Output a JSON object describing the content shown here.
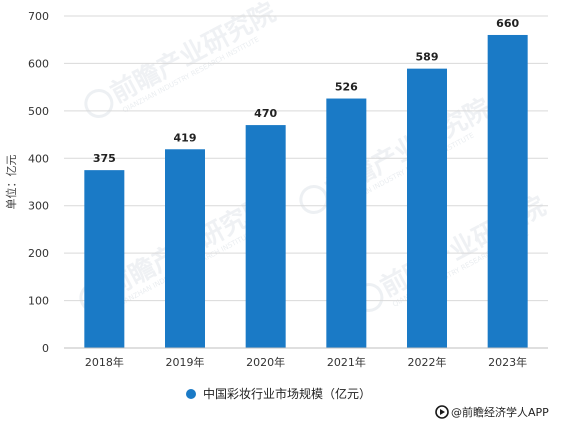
{
  "chart_data": {
    "type": "bar",
    "categories": [
      "2018年",
      "2019年",
      "2020年",
      "2021年",
      "2022年",
      "2023年"
    ],
    "series": [
      {
        "name": "中国彩妆行业市场规模（亿元）",
        "values": [
          375,
          419,
          470,
          526,
          589,
          660
        ]
      }
    ],
    "data_labels": [
      "375",
      "419",
      "470",
      "526",
      "589",
      "660"
    ],
    "ylabel": "单位：亿元",
    "xlabel": "",
    "ylim": [
      0,
      700
    ],
    "yticks": [
      0,
      100,
      200,
      300,
      400,
      500,
      600,
      700
    ],
    "grid": true,
    "legend_position": "bottom",
    "bar_color": "#1a7ac6"
  },
  "watermark": {
    "brand": "前瞻产业研究院",
    "sub": "QIANZHAN INDUSTRY RESEARCH INSTITUTE"
  },
  "credit": {
    "text": "@前瞻经济学人APP",
    "icon": "qianzhan-logo-icon"
  }
}
